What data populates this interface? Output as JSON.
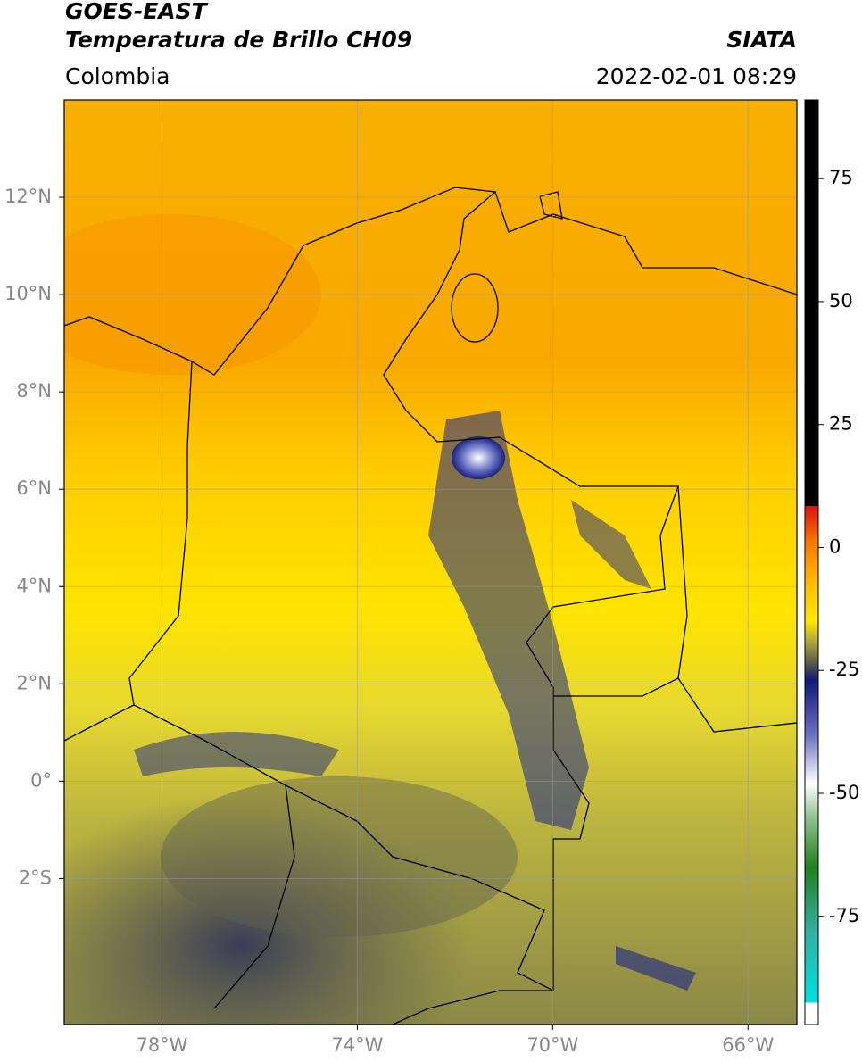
{
  "header": {
    "title": "GOES-EAST",
    "subtitle": "Temperatura de Brillo CH09",
    "source": "SIATA",
    "region": "Colombia",
    "timestamp": "2022-02-01 08:29"
  },
  "map": {
    "xlim": [
      -80,
      -65
    ],
    "ylim": [
      -5,
      14
    ],
    "xticks": [
      {
        "value": -78,
        "label": "78°W"
      },
      {
        "value": -74,
        "label": "74°W"
      },
      {
        "value": -70,
        "label": "70°W"
      },
      {
        "value": -66,
        "label": "66°W"
      }
    ],
    "yticks": [
      {
        "value": 12,
        "label": "12°N"
      },
      {
        "value": 10,
        "label": "10°N"
      },
      {
        "value": 8,
        "label": "8°N"
      },
      {
        "value": 6,
        "label": "6°N"
      },
      {
        "value": 4,
        "label": "4°N"
      },
      {
        "value": 2,
        "label": "2°N"
      },
      {
        "value": 0,
        "label": "0°"
      },
      {
        "value": -2,
        "label": "2°S"
      }
    ],
    "grid": true
  },
  "colorbar": {
    "lim": [
      -97,
      91
    ],
    "ticks": [
      75,
      50,
      25,
      0,
      -25,
      -50,
      -75
    ],
    "stops": [
      {
        "value": 91,
        "color": "#000000"
      },
      {
        "value": 8.5,
        "color": "#000000"
      },
      {
        "value": 8.4,
        "color": "#e01010"
      },
      {
        "value": 1,
        "color": "#f77a00"
      },
      {
        "value": -8,
        "color": "#ffc000"
      },
      {
        "value": -15,
        "color": "#ffe800"
      },
      {
        "value": -19,
        "color": "#b0a840"
      },
      {
        "value": -24,
        "color": "#505048"
      },
      {
        "value": -27,
        "color": "#10187a"
      },
      {
        "value": -38,
        "color": "#6870c0"
      },
      {
        "value": -48,
        "color": "#ffffff"
      },
      {
        "value": -55,
        "color": "#90c090"
      },
      {
        "value": -65,
        "color": "#208020"
      },
      {
        "value": -78,
        "color": "#30b0a0"
      },
      {
        "value": -92.5,
        "color": "#00e0e0"
      },
      {
        "value": -92.6,
        "color": "#ffffff"
      },
      {
        "value": -97,
        "color": "#ffffff"
      }
    ]
  }
}
